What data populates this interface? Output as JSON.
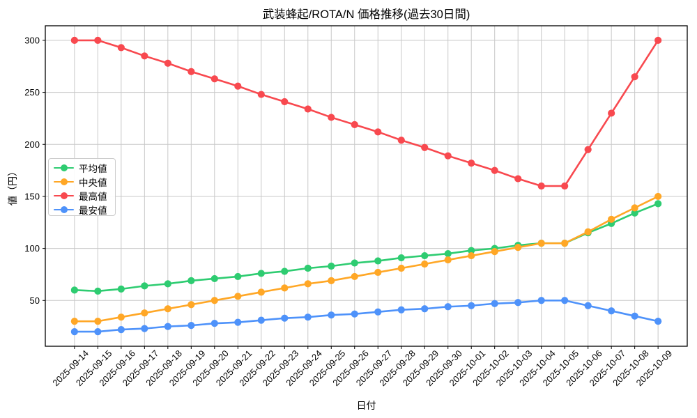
{
  "chart_data": {
    "type": "line",
    "title": "武装蜂起/ROTA/N 価格推移(過去30日間)",
    "xlabel": "日付",
    "ylabel": "値（円）",
    "x": [
      "2025-09-14",
      "2025-09-15",
      "2025-09-16",
      "2025-09-17",
      "2025-09-18",
      "2025-09-19",
      "2025-09-20",
      "2025-09-21",
      "2025-09-22",
      "2025-09-23",
      "2025-09-24",
      "2025-09-25",
      "2025-09-26",
      "2025-09-27",
      "2025-09-28",
      "2025-09-29",
      "2025-09-30",
      "2025-10-01",
      "2025-10-02",
      "2025-10-03",
      "2025-10-04",
      "2025-10-05",
      "2025-10-06",
      "2025-10-07",
      "2025-10-08",
      "2025-10-09"
    ],
    "series": [
      {
        "key": "average",
        "name": "平均値",
        "color": "#2ecc71",
        "values": [
          60,
          59,
          61,
          64,
          66,
          69,
          71,
          73,
          76,
          78,
          81,
          83,
          86,
          88,
          91,
          93,
          95,
          98,
          100,
          103,
          105,
          105,
          115,
          124,
          134,
          143
        ]
      },
      {
        "key": "median",
        "name": "中央値",
        "color": "#ffa726",
        "values": [
          30,
          30,
          34,
          38,
          42,
          46,
          50,
          54,
          58,
          62,
          66,
          69,
          73,
          77,
          81,
          85,
          89,
          93,
          97,
          101,
          105,
          105,
          116,
          128,
          139,
          150
        ]
      },
      {
        "key": "highest",
        "name": "最高値",
        "color": "#f8494f",
        "values": [
          300,
          300,
          293,
          285,
          278,
          270,
          263,
          256,
          248,
          241,
          234,
          226,
          219,
          212,
          204,
          197,
          189,
          182,
          175,
          167,
          160,
          160,
          195,
          230,
          265,
          300
        ]
      },
      {
        "key": "lowest",
        "name": "最安値",
        "color": "#4e92fa",
        "values": [
          20,
          20,
          22,
          23,
          25,
          26,
          28,
          29,
          31,
          33,
          34,
          36,
          37,
          39,
          41,
          42,
          44,
          45,
          47,
          48,
          50,
          50,
          45,
          40,
          35,
          30
        ]
      }
    ],
    "ylim": [
      6,
      314
    ],
    "yticks": [
      50,
      100,
      150,
      200,
      250,
      300
    ],
    "grid": true,
    "legend_position": "center-left",
    "axis_color": "#000000",
    "grid_color": "#c8c8c8"
  }
}
